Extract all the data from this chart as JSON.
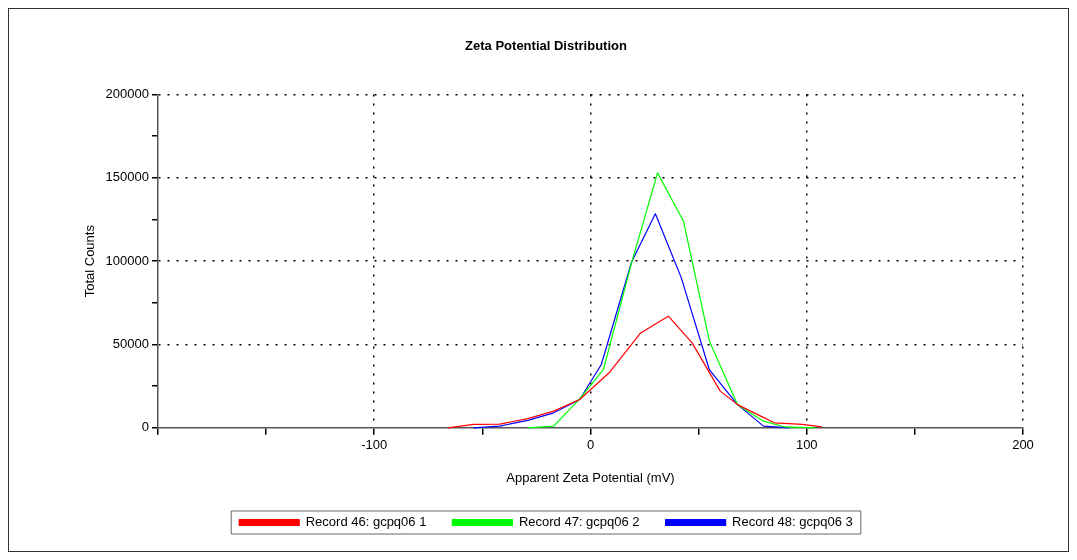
{
  "chart_data": {
    "type": "line",
    "title": "Zeta Potential Distribution",
    "xlabel": "Apparent Zeta Potential (mV)",
    "ylabel": "Total Counts",
    "xlim": [
      -200,
      200
    ],
    "xticks": [
      {
        "value": -200,
        "label": null
      },
      {
        "value": -150,
        "label": null
      },
      -100,
      {
        "value": -50,
        "label": null
      },
      0,
      {
        "value": 50,
        "label": null
      },
      100,
      {
        "value": 150,
        "label": null
      },
      200
    ],
    "ylim": [
      0,
      200000
    ],
    "yticks": [
      0,
      {
        "value": 25000,
        "label": null
      },
      50000,
      {
        "value": 75000,
        "label": null
      },
      100000,
      {
        "value": 125000,
        "label": null
      },
      150000,
      {
        "value": 175000,
        "label": null
      },
      200000
    ],
    "grid": true,
    "legend": "bottom",
    "marker": "none",
    "line_style": "solid",
    "series": [
      {
        "name": "Record 46: gcpq06 1",
        "color": "#ff0000",
        "x": [
          -66,
          -54,
          -42,
          -29,
          -17,
          -5,
          9,
          23,
          36,
          47,
          60,
          68,
          85,
          98,
          107
        ],
        "values": [
          0,
          2000,
          2200,
          5500,
          10000,
          17000,
          33500,
          56700,
          67000,
          51000,
          22000,
          13900,
          3000,
          2000,
          500
        ]
      },
      {
        "name": "Record 47: gcpq06 2",
        "color": "#00ff00",
        "x": [
          -29,
          -17,
          -5,
          6,
          19,
          31,
          43,
          55,
          68,
          80,
          90,
          104
        ],
        "values": [
          0,
          1000,
          17400,
          35000,
          99000,
          153000,
          124000,
          52000,
          13900,
          4000,
          500,
          0
        ]
      },
      {
        "name": "Record 48: gcpq06 3",
        "color": "#0000ff",
        "x": [
          -54,
          -42,
          -29,
          -17,
          -5,
          5,
          19,
          30,
          42,
          55,
          68,
          80,
          92
        ],
        "values": [
          0,
          1000,
          4500,
          9000,
          17000,
          38000,
          99500,
          128500,
          90000,
          34700,
          13900,
          1000,
          0
        ]
      }
    ]
  }
}
